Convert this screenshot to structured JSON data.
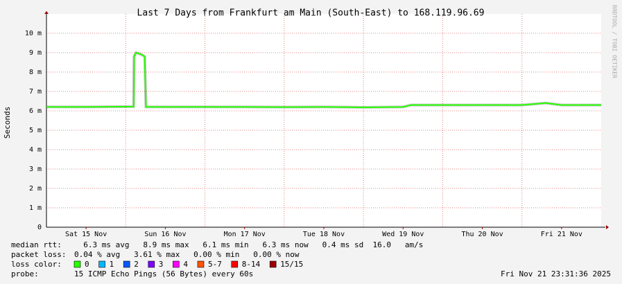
{
  "chart_data": {
    "type": "line",
    "title": "Last 7 Days from Frankfurt am Main (South-East) to 168.119.96.69",
    "y_label": "Seconds",
    "side_text": "RRDTOOL / TOBI OETIKER",
    "xlim": [
      0,
      7
    ],
    "xticks": [
      {
        "value": 0.5,
        "label": "Sat 15 Nov"
      },
      {
        "value": 1.5,
        "label": "Sun 16 Nov"
      },
      {
        "value": 2.5,
        "label": "Mon 17 Nov"
      },
      {
        "value": 3.5,
        "label": "Tue 18 Nov"
      },
      {
        "value": 4.5,
        "label": "Wed 19 Nov"
      },
      {
        "value": 5.5,
        "label": "Thu 20 Nov"
      },
      {
        "value": 6.5,
        "label": "Fri 21 Nov"
      }
    ],
    "ylim": [
      0,
      0.011
    ],
    "yticks": [
      0,
      {
        "value": 0.001,
        "label": "1 m"
      },
      {
        "value": 0.002,
        "label": "2 m"
      },
      {
        "value": 0.003,
        "label": "3 m"
      },
      {
        "value": 0.004,
        "label": "4 m"
      },
      {
        "value": 0.005,
        "label": "5 m"
      },
      {
        "value": 0.006,
        "label": "6 m"
      },
      {
        "value": 0.007,
        "label": "7 m"
      },
      {
        "value": 0.008,
        "label": "8 m"
      },
      {
        "value": 0.009,
        "label": "9 m"
      },
      {
        "value": 0.01,
        "label": "10 m"
      }
    ],
    "grid": true,
    "series": [
      {
        "color": "#26ff00",
        "x": [
          0,
          0.5,
          1.1,
          1.105,
          1.13,
          1.2,
          1.24,
          1.255,
          1.5,
          2,
          2.5,
          3,
          3.5,
          4,
          4.5,
          4.6,
          5,
          5.5,
          6,
          6.3,
          6.5,
          7
        ],
        "values": [
          0.0062,
          0.0062,
          0.00622,
          0.0088,
          0.009,
          0.0089,
          0.0088,
          0.0062,
          0.0062,
          0.0062,
          0.0062,
          0.00619,
          0.0062,
          0.00618,
          0.0062,
          0.0063,
          0.0063,
          0.0063,
          0.0063,
          0.0064,
          0.0063,
          0.0063
        ]
      }
    ],
    "stats": [
      {
        "label": "median rtt:",
        "text": "  6.3 ms avg   8.9 ms max   6.1 ms min   6.3 ms now   0.4 ms sd  16.0   am/s"
      },
      {
        "label": "packet loss:",
        "text": "0.04 % avg   3.61 % max   0.00 % min   0.00 % now"
      }
    ],
    "loss_label": "loss color:",
    "loss_colors": [
      {
        "name": "0",
        "color": "#26ff00"
      },
      {
        "name": "1",
        "color": "#00b8ff"
      },
      {
        "name": "2",
        "color": "#0059ff"
      },
      {
        "name": "3",
        "color": "#7e00ff"
      },
      {
        "name": "4",
        "color": "#ff00ff"
      },
      {
        "name": "5-7",
        "color": "#ff5500"
      },
      {
        "name": "8-14",
        "color": "#ff0000"
      },
      {
        "name": "15/15",
        "color": "#a10000"
      }
    ],
    "probe_label": "probe:",
    "probe": "15 ICMP Echo Pings (56 Bytes) every 60s",
    "timestamp": "Fri Nov 21 23:31:36 2025"
  }
}
